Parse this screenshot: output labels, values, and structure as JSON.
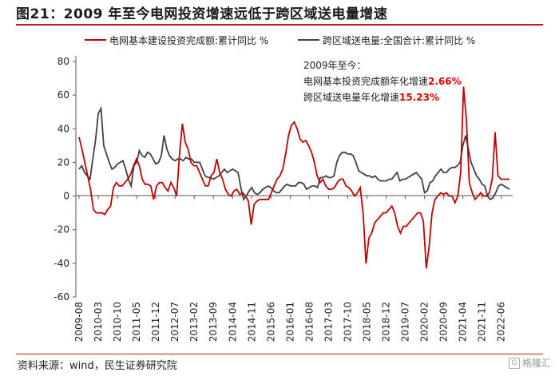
{
  "title": "图21：2009 年至今电网投资增速远低于跨区域送电量增速",
  "source": "资料来源：wind，民生证券研究院",
  "watermark": "格隆汇",
  "colors": {
    "red": "#c00000",
    "gray": "#404040",
    "accent": "#b22222"
  },
  "annotation": {
    "line1": "2009年至今：",
    "line2_prefix": "电网基本投资完成额年化增速",
    "line2_value": "2.66%",
    "line3_prefix": "跨区域送电量年化增速",
    "line3_value": "15.23%"
  },
  "chart_data": {
    "type": "line",
    "title": "图21：2009 年至今电网投资增速远低于跨区域送电量增速",
    "ylim": [
      -60,
      80
    ],
    "yticks": [
      80,
      60,
      40,
      20,
      0,
      -20,
      -40,
      -60
    ],
    "x_tick_labels": [
      "2009-08",
      "2010-03",
      "2010-10",
      "2011-05",
      "2011-12",
      "2012-07",
      "2013-02",
      "2013-09",
      "2014-04",
      "2014-11",
      "2015-06",
      "2016-01",
      "2016-08",
      "2017-03",
      "2017-10",
      "2018-05",
      "2018-12",
      "2019-07",
      "2020-02",
      "2020-09",
      "2021-04",
      "2021-11",
      "2022-06"
    ],
    "x_start": "2009-08",
    "legend_position": "top",
    "series": [
      {
        "name": "电网基本建设投资完成额:累计同比 %",
        "color": "#c00000",
        "values": [
          35,
          28,
          20,
          12,
          4,
          -8,
          -10,
          -10,
          -10,
          -11,
          -8,
          -6,
          5,
          8,
          6,
          6,
          8,
          10,
          13,
          18,
          22,
          18,
          10,
          7,
          7,
          6,
          -2,
          6,
          8,
          8,
          5,
          3,
          8,
          5,
          0,
          25,
          43,
          32,
          28,
          20,
          18,
          18,
          14,
          10,
          6,
          6,
          12,
          14,
          22,
          14,
          10,
          4,
          1,
          0,
          3,
          4,
          1,
          2,
          0,
          -3,
          -17,
          -5,
          -3,
          -2,
          -2,
          -2,
          -2,
          2,
          6,
          10,
          12,
          16,
          25,
          36,
          42,
          44,
          40,
          34,
          32,
          33,
          30,
          26,
          20,
          12,
          8,
          10,
          6,
          4,
          4,
          5,
          8,
          10,
          10,
          6,
          5,
          3,
          0,
          2,
          5,
          -10,
          -40,
          -25,
          -22,
          -16,
          -14,
          -12,
          -10,
          -10,
          -8,
          -6,
          -10,
          -18,
          -22,
          -18,
          -18,
          -16,
          -14,
          -12,
          -10,
          -10,
          -15,
          -43,
          -30,
          -10,
          -2,
          0,
          2,
          1,
          2,
          0,
          0,
          -4,
          0,
          14,
          65,
          45,
          8,
          2,
          -2,
          0,
          2,
          0,
          0,
          2,
          10,
          38,
          12,
          10,
          10,
          10,
          10
        ]
      },
      {
        "name": "跨区域送电量:全国合计:累计同比 %",
        "color": "#404040",
        "values": [
          16,
          18,
          14,
          12,
          10,
          22,
          33,
          49,
          52,
          30,
          25,
          20,
          16,
          17,
          19,
          20,
          21,
          16,
          10,
          6,
          18,
          20,
          27,
          24,
          23,
          26,
          25,
          22,
          19,
          20,
          24,
          36,
          28,
          24,
          22,
          21,
          22,
          22,
          21,
          23,
          22,
          22,
          20,
          20,
          20,
          16,
          12,
          11,
          11,
          10,
          11,
          12,
          14,
          16,
          14,
          15,
          16,
          15,
          14,
          5,
          -2,
          0,
          3,
          5,
          2,
          1,
          2,
          4,
          5,
          6,
          5,
          3,
          2,
          2,
          4,
          6,
          7,
          6,
          6,
          6,
          8,
          8,
          7,
          4,
          5,
          6,
          6,
          5,
          11,
          11,
          12,
          11,
          11,
          12,
          20,
          24,
          26,
          26,
          25,
          25,
          24,
          20,
          15,
          14,
          13,
          12,
          12,
          11,
          12,
          10,
          9,
          9,
          9,
          10,
          10,
          12,
          14,
          9,
          10,
          10,
          11,
          12,
          13,
          14,
          12,
          10,
          2,
          3,
          8,
          9,
          12,
          14,
          16,
          14,
          14,
          16,
          17,
          17,
          18,
          20,
          30,
          36,
          28,
          20,
          16,
          12,
          10,
          7,
          6,
          0,
          -2,
          -1,
          2,
          6,
          7,
          6,
          5,
          4
        ]
      }
    ]
  }
}
